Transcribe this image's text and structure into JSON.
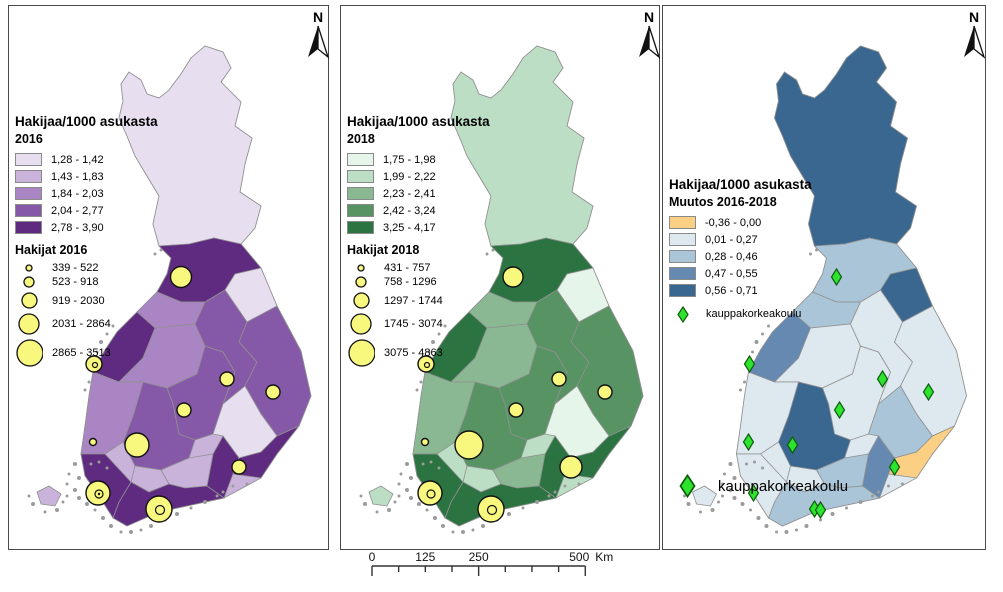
{
  "compass": {
    "label": "N"
  },
  "panels": [
    {
      "id": "2016",
      "legend": {
        "title": "Hakijaa/1000 asukasta",
        "subtitle": "2016",
        "classes": [
          "1,28 - 1,42",
          "1,43 - 1,83",
          "1,84 - 2,03",
          "2,04 - 2,77",
          "2,78 - 3,90"
        ],
        "symbol_title": "Hakijat 2016",
        "symbol_classes": [
          "339 - 522",
          "523 - 918",
          "919 - 2030",
          "2031 - 2864",
          "2865 - 3513"
        ]
      }
    },
    {
      "id": "2018",
      "legend": {
        "title": "Hakijaa/1000 asukasta",
        "subtitle": "2018",
        "classes": [
          "1,75 - 1,98",
          "1,99 - 2,22",
          "2,23 - 2,41",
          "2,42 - 3,24",
          "3,25 - 4,17"
        ],
        "symbol_title": "Hakijat 2018",
        "symbol_classes": [
          "431 - 757",
          "758 - 1296",
          "1297 - 1744",
          "1745 - 3074",
          "3075 - 4863"
        ]
      }
    },
    {
      "id": "change",
      "legend": {
        "title": "Hakijaa/1000 asukasta",
        "subtitle": "Muutos 2016-2018",
        "classes": [
          "-0,36 - 0,00",
          "0,01 - 0,27",
          "0,28 - 0,46",
          "0,47 - 0,55",
          "0,56 - 0,71"
        ],
        "point_label": "kauppakorkeakoulu"
      },
      "bottom_label": "kauppakorkeakoulu"
    }
  ],
  "scalebar": {
    "ticks": [
      "0",
      "125",
      "250",
      "500"
    ],
    "unit": "Km"
  },
  "colors": {
    "palette_2016": [
      "#e7def0",
      "#c9b3da",
      "#aa85c3",
      "#8659a8",
      "#5f2b80"
    ],
    "palette_2018": [
      "#e6f5ea",
      "#bcdec4",
      "#8ab893",
      "#579363",
      "#2b7341"
    ],
    "palette_change": [
      "#fbcf84",
      "#dde8ef",
      "#abc5d8",
      "#6589b0",
      "#39678f"
    ],
    "circle_fill": "#f8f77e",
    "circle_stroke": "#111111",
    "diamond_fill": "#2ee32e",
    "diamond_stroke": "#0b5c0b",
    "region_border": "#909090"
  },
  "map_data": {
    "region_classes": {
      "lappi": {
        "y2016": 1,
        "y2018": 2,
        "change": 5
      },
      "pohjois_pohjanmaa": {
        "y2016": 5,
        "y2018": 5,
        "change": 3
      },
      "kainuu": {
        "y2016": 1,
        "y2018": 1,
        "change": 5
      },
      "keski_pohjanmaa": {
        "y2016": 3,
        "y2018": 3,
        "change": 3
      },
      "pohjanmaa": {
        "y2016": 5,
        "y2018": 5,
        "change": 4
      },
      "etela_pohjanmaa": {
        "y2016": 3,
        "y2018": 3,
        "change": 2
      },
      "keski_suomi": {
        "y2016": 4,
        "y2018": 4,
        "change": 2
      },
      "pohjois_savo": {
        "y2016": 4,
        "y2018": 4,
        "change": 2
      },
      "pohjois_karjala": {
        "y2016": 4,
        "y2018": 4,
        "change": 2
      },
      "etela_savo": {
        "y2016": 1,
        "y2018": 1,
        "change": 3
      },
      "etela_karjala": {
        "y2016": 5,
        "y2018": 5,
        "change": 1
      },
      "kymenlaakso": {
        "y2016": 5,
        "y2018": 5,
        "change": 4
      },
      "pirkanmaa": {
        "y2016": 4,
        "y2018": 4,
        "change": 5
      },
      "satakunta": {
        "y2016": 3,
        "y2018": 3,
        "change": 2
      },
      "kanta_hame": {
        "y2016": 2,
        "y2018": 2,
        "change": 2
      },
      "paijat_hame": {
        "y2016": 2,
        "y2018": 3,
        "change": 3
      },
      "uusimaa": {
        "y2016": 5,
        "y2018": 5,
        "change": 3
      },
      "varsinais_suomi": {
        "y2016": 5,
        "y2018": 5,
        "change": 2
      },
      "ahvenanmaa": {
        "y2016": 2,
        "y2018": 2,
        "change": 2
      }
    },
    "markers_2016": [
      {
        "city": "oulu",
        "r": 10.5
      },
      {
        "city": "vaasa",
        "r": 8,
        "inner": 2.5
      },
      {
        "city": "kuopio",
        "r": 7
      },
      {
        "city": "joensuu",
        "r": 7
      },
      {
        "city": "jyvaskyla",
        "r": 7
      },
      {
        "city": "tampere",
        "r": 12
      },
      {
        "city": "pori",
        "r": 3.5
      },
      {
        "city": "lappeenranta",
        "r": 7
      },
      {
        "city": "turku",
        "r": 12,
        "inner": 4,
        "dot": true
      },
      {
        "city": "helsinki",
        "r": 13,
        "inner": 4.5
      }
    ],
    "markers_2018": [
      {
        "city": "oulu",
        "r": 10
      },
      {
        "city": "vaasa",
        "r": 8,
        "inner": 2.5
      },
      {
        "city": "kuopio",
        "r": 7
      },
      {
        "city": "joensuu",
        "r": 7
      },
      {
        "city": "jyvaskyla",
        "r": 7
      },
      {
        "city": "tampere",
        "r": 14
      },
      {
        "city": "pori",
        "r": 3.5
      },
      {
        "city": "lappeenranta",
        "r": 11
      },
      {
        "city": "turku",
        "r": 12,
        "inner": 4
      },
      {
        "city": "helsinki",
        "r": 13,
        "inner": 4.5
      }
    ],
    "diamonds_change": [
      "oulu",
      "vaasa",
      "kuopio",
      "joensuu",
      "jyvaskyla",
      "tampere",
      "pori",
      "lappeenranta",
      "turku",
      "helsinki",
      "helsinki2"
    ]
  }
}
